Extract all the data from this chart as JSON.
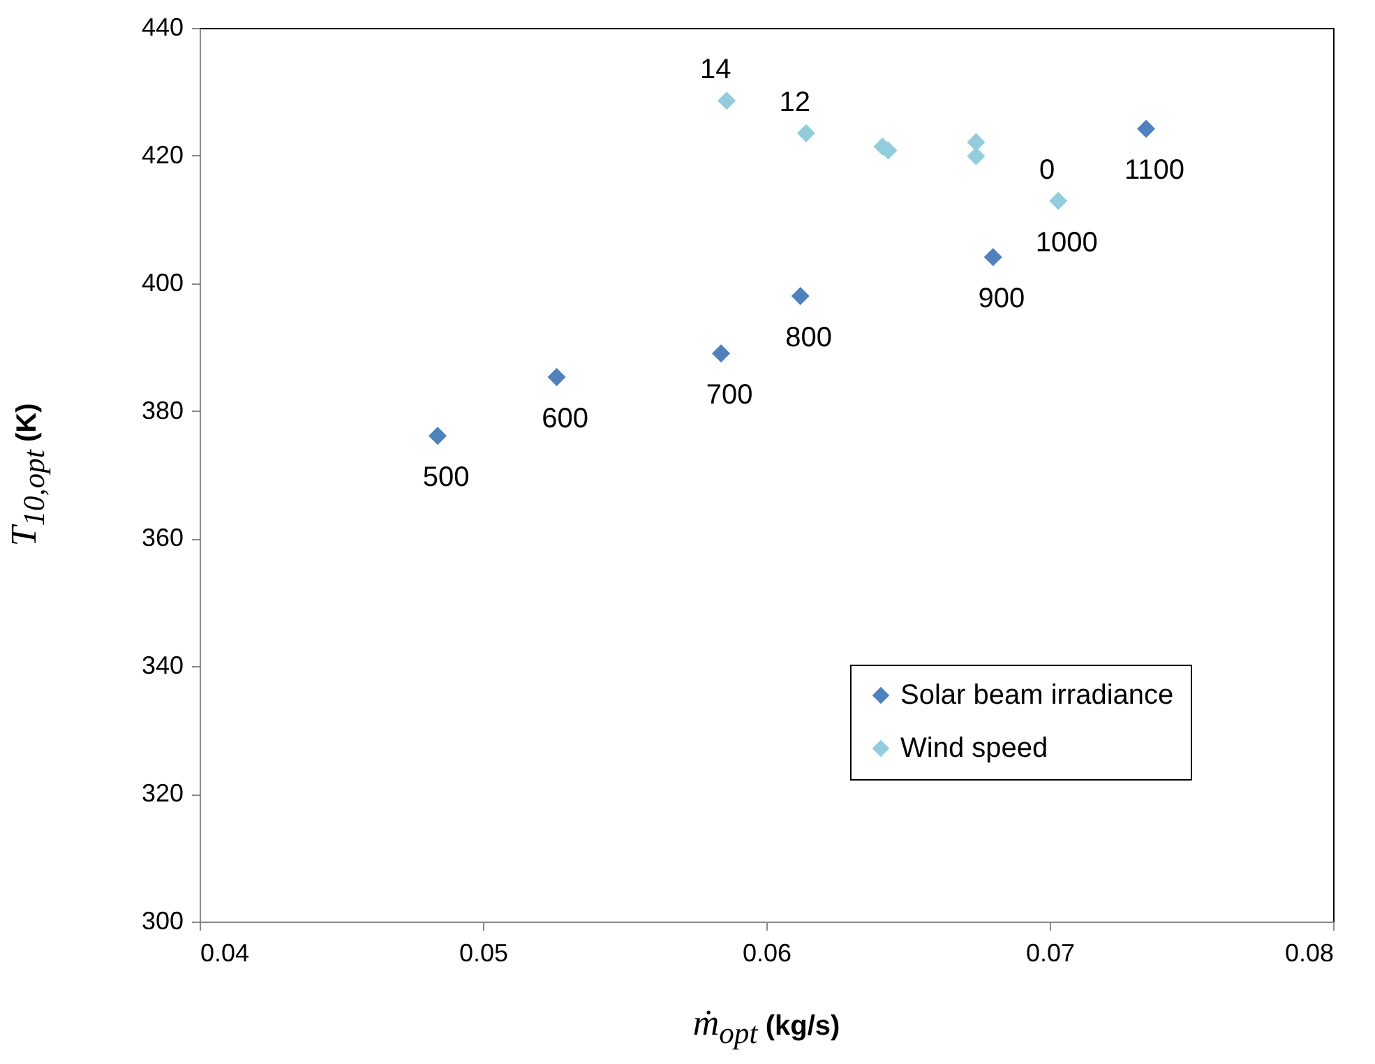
{
  "chart_data": {
    "type": "scatter",
    "xlabel": "ṁ$_{opt}$ (kg/s)",
    "ylabel": "T$_{10,opt}$ (K)",
    "xlim": [
      0.04,
      0.08
    ],
    "xticks": [
      0.04,
      0.05,
      0.06,
      0.07,
      0.08
    ],
    "ylim": [
      300,
      440
    ],
    "yticks": [
      300,
      320,
      340,
      360,
      380,
      400,
      420,
      440
    ],
    "grid": false,
    "legend": "bottom right",
    "marker": "diamond",
    "series": [
      {
        "name": "Solar beam irradiance",
        "color": "#4f81bd",
        "x": [
          0.0484,
          0.0526,
          0.0584,
          0.0612,
          0.068,
          null,
          0.0734
        ],
        "values": [
          376.1,
          385.3,
          389.0,
          398.0,
          404.1,
          null,
          424.2
        ]
      },
      {
        "name": "Wind speed",
        "color": "#93cddd",
        "x": [
          0.0586,
          0.0614,
          0.0641,
          0.0643,
          0.0674,
          0.0674,
          0.0703
        ],
        "values": [
          428.6,
          423.5,
          421.4,
          420.8,
          422.1,
          419.9,
          412.9
        ]
      }
    ],
    "annotations": [
      {
        "text": "500",
        "x": 0.0484,
        "y": 376.1
      },
      {
        "text": "600",
        "x": 0.0526,
        "y": 385.3
      },
      {
        "text": "700",
        "x": 0.0584,
        "y": 389.0
      },
      {
        "text": "800",
        "x": 0.0612,
        "y": 398.0
      },
      {
        "text": "900",
        "x": 0.068,
        "y": 404.1
      },
      {
        "text": "0",
        "x": 0.0703,
        "y": 412.9
      },
      {
        "text": "1000",
        "x": 0.0703,
        "y": 412.9
      },
      {
        "text": "1100",
        "x": 0.0734,
        "y": 424.2
      },
      {
        "text": "14",
        "x": 0.0586,
        "y": 428.6
      },
      {
        "text": "12",
        "x": 0.0614,
        "y": 423.5
      }
    ]
  }
}
